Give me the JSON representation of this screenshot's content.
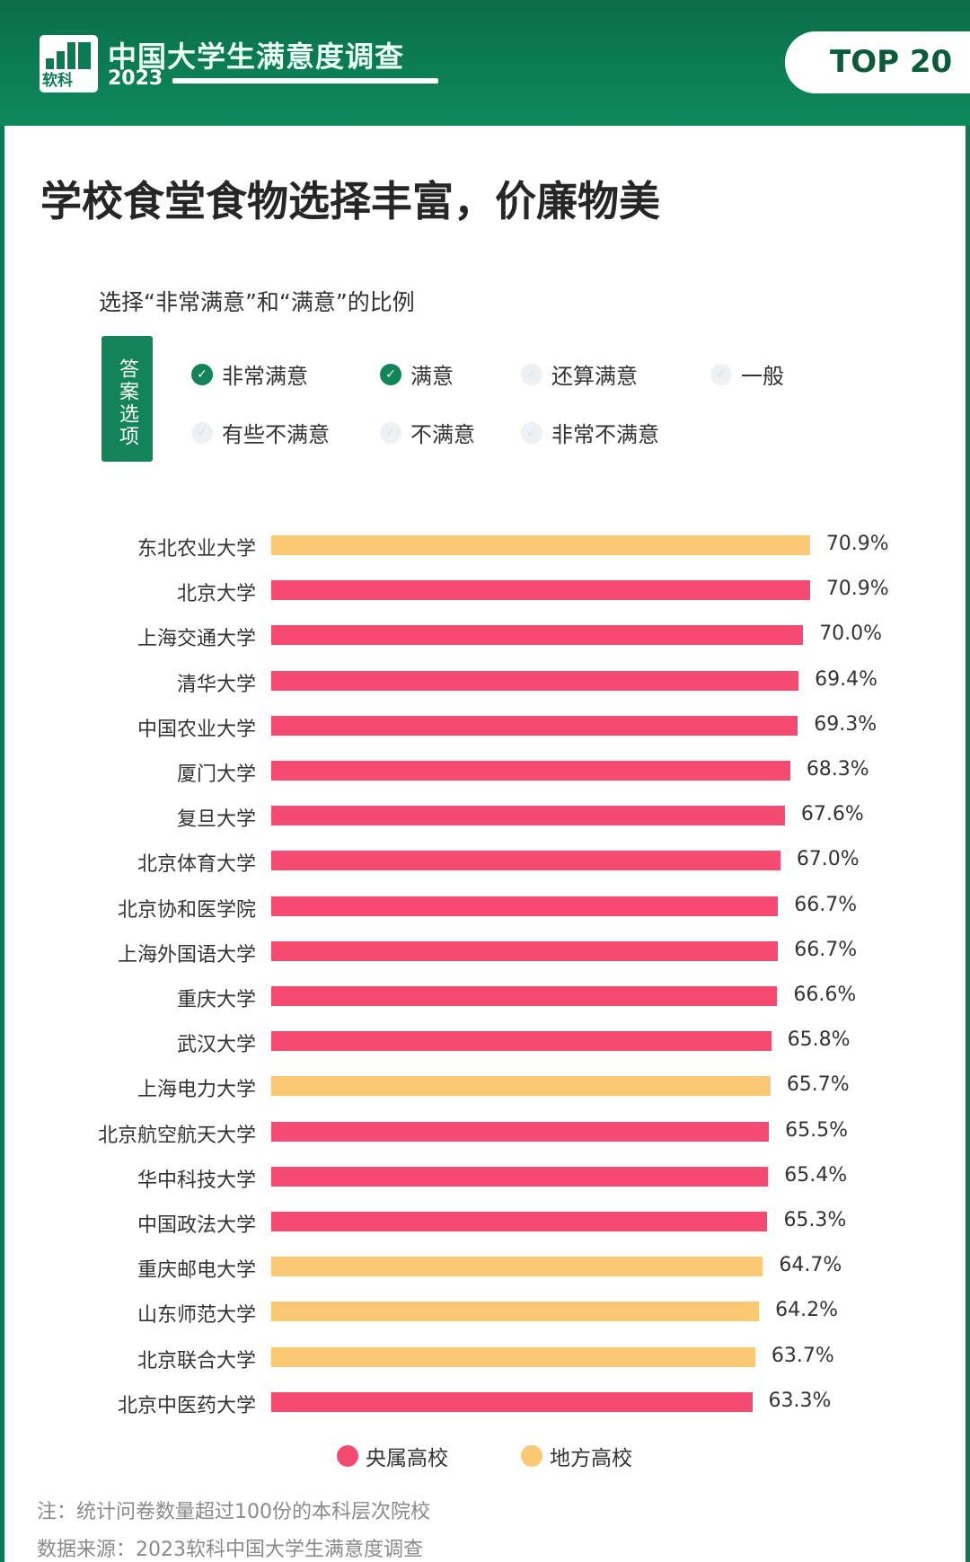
{
  "header": {
    "logo_text": "软科",
    "title": "中国大学生满意度调查",
    "year": "2023",
    "badge": "TOP 20"
  },
  "title": "学校食堂食物选择丰富，价廉物美",
  "subtitle": "选择“非常满意”和“满意”的比例",
  "options": {
    "label": "答案选项",
    "items": [
      {
        "label": "非常满意",
        "checked": true
      },
      {
        "label": "满意",
        "checked": true
      },
      {
        "label": "还算满意",
        "checked": false
      },
      {
        "label": "一般",
        "checked": false
      },
      {
        "label": "有些不满意",
        "checked": false
      },
      {
        "label": "不满意",
        "checked": false
      },
      {
        "label": "非常不满意",
        "checked": false
      }
    ]
  },
  "colors": {
    "central": "#f54b72",
    "local": "#fbc874",
    "brand": "#0c7a52"
  },
  "chart_data": {
    "type": "bar",
    "orientation": "horizontal",
    "unit": "%",
    "categories": [
      "东北农业大学",
      "北京大学",
      "上海交通大学",
      "清华大学",
      "中国农业大学",
      "厦门大学",
      "复旦大学",
      "北京体育大学",
      "北京协和医学院",
      "上海外国语大学",
      "重庆大学",
      "武汉大学",
      "上海电力大学",
      "北京航空航天大学",
      "华中科技大学",
      "中国政法大学",
      "重庆邮电大学",
      "山东师范大学",
      "北京联合大学",
      "北京中医药大学"
    ],
    "values": [
      70.9,
      70.9,
      70.0,
      69.4,
      69.3,
      68.3,
      67.6,
      67.0,
      66.7,
      66.7,
      66.6,
      65.8,
      65.7,
      65.5,
      65.4,
      65.3,
      64.7,
      64.2,
      63.7,
      63.3
    ],
    "value_labels": [
      "70.9%",
      "70.9%",
      "70.0%",
      "69.4%",
      "69.3%",
      "68.3%",
      "67.6%",
      "67.0%",
      "66.7%",
      "66.7%",
      "66.6%",
      "65.8%",
      "65.7%",
      "65.5%",
      "65.4%",
      "65.3%",
      "64.7%",
      "64.2%",
      "63.7%",
      "63.3%"
    ],
    "groups": [
      "local",
      "central",
      "central",
      "central",
      "central",
      "central",
      "central",
      "central",
      "central",
      "central",
      "central",
      "central",
      "local",
      "central",
      "central",
      "central",
      "local",
      "local",
      "local",
      "central"
    ],
    "legend": [
      {
        "key": "central",
        "name": "央属高校"
      },
      {
        "key": "local",
        "name": "地方高校"
      }
    ],
    "legend_position": "bottom",
    "grid": false
  },
  "notes": [
    "注：统计问卷数量超过100份的本科层次院校",
    "数据来源：2023软科中国大学生满意度调查"
  ]
}
